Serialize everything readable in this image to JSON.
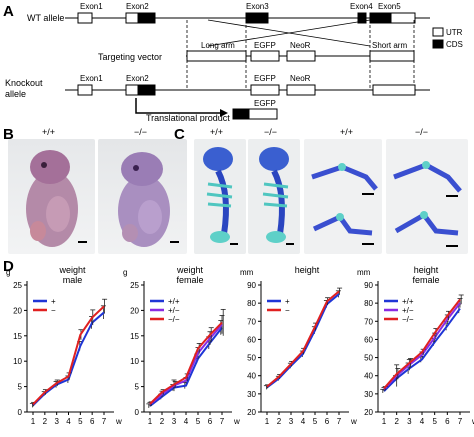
{
  "panels": {
    "a": "A",
    "b": "B",
    "c": "C",
    "d": "D"
  },
  "diagram": {
    "wt_allele": "WT allele",
    "targeting_vector": "Targeting vector",
    "knockout_allele_line1": "Knockout",
    "knockout_allele_line2": "allele",
    "exon1": "Exon1",
    "exon2": "Exon2",
    "exon3": "Exon3",
    "exon4": "Exon4",
    "exon5": "Exon5",
    "long_arm": "Long arm",
    "short_arm": "Short arm",
    "egfp": "EGFP",
    "neor": "NeoR",
    "translational_product": "Translational product",
    "legend_utr": "UTR",
    "legend_cds": "CDS"
  },
  "genotypes": {
    "b": [
      "+/+",
      "−/−"
    ],
    "c": [
      "+/+",
      "−/−",
      "+/+",
      "−/−"
    ]
  },
  "chart_data": [
    {
      "type": "line",
      "title": "weight",
      "subtitle": "male",
      "ylabel": "g",
      "xlabel": "w",
      "x": [
        1,
        2,
        3,
        4,
        5,
        6,
        7
      ],
      "ylim": [
        0,
        25
      ],
      "yticks": [
        0,
        5,
        10,
        15,
        20,
        25
      ],
      "legend_position": "top-left",
      "series": [
        {
          "name": "+",
          "color": "#1f35d6",
          "values": [
            1.3,
            3.6,
            5.4,
            6.4,
            13.0,
            17.6,
            19.6
          ],
          "err": [
            0.4,
            0.4,
            0.6,
            0.7,
            0.9,
            1.2,
            1.3
          ]
        },
        {
          "name": "−",
          "color": "#e02020",
          "values": [
            1.5,
            3.9,
            5.7,
            7.0,
            15.2,
            18.6,
            20.8
          ],
          "err": [
            0.4,
            0.5,
            0.6,
            0.7,
            1.0,
            1.5,
            1.4
          ]
        }
      ]
    },
    {
      "type": "line",
      "title": "weight",
      "subtitle": "female",
      "ylabel": "g",
      "xlabel": "w",
      "x": [
        1,
        2,
        3,
        4,
        5,
        6,
        7
      ],
      "ylim": [
        0,
        25
      ],
      "yticks": [
        0,
        5,
        10,
        15,
        20,
        25
      ],
      "legend_position": "top-left",
      "series": [
        {
          "name": "+/+",
          "color": "#1f35d6",
          "values": [
            1.2,
            3.0,
            4.8,
            5.2,
            10.5,
            13.6,
            16.6
          ],
          "err": [
            0.4,
            0.5,
            0.6,
            0.6,
            0.9,
            1.2,
            1.4
          ]
        },
        {
          "name": "+/−",
          "color": "#8a2be2",
          "values": [
            1.5,
            3.5,
            5.2,
            6.2,
            11.6,
            14.5,
            17.2
          ],
          "err": [
            0.4,
            0.6,
            1.1,
            0.6,
            1.1,
            1.3,
            1.8
          ]
        },
        {
          "name": "−/−",
          "color": "#e02020",
          "values": [
            1.6,
            3.9,
            5.4,
            6.8,
            12.5,
            15.2,
            17.6
          ],
          "err": [
            0.4,
            0.5,
            0.6,
            0.7,
            1.0,
            1.4,
            2.6
          ]
        }
      ]
    },
    {
      "type": "line",
      "title": "height",
      "subtitle": "",
      "ylabel": "mm",
      "xlabel": "w",
      "x": [
        1,
        2,
        3,
        4,
        5,
        6,
        7
      ],
      "ylim": [
        20,
        90
      ],
      "yticks": [
        20,
        30,
        40,
        50,
        60,
        70,
        80,
        90
      ],
      "legend_position": "top-left",
      "series": [
        {
          "name": "+",
          "color": "#1f35d6",
          "values": [
            33.5,
            38.5,
            45.5,
            52.0,
            65.0,
            79.5,
            85.0
          ],
          "err": [
            1.0,
            1.2,
            1.4,
            1.6,
            2.0,
            2.0,
            1.8
          ]
        },
        {
          "name": "−",
          "color": "#e02020",
          "values": [
            34.0,
            39.5,
            46.5,
            53.5,
            67.0,
            81.0,
            86.5
          ],
          "err": [
            1.0,
            1.2,
            1.4,
            1.6,
            2.0,
            2.0,
            1.8
          ]
        }
      ]
    },
    {
      "type": "line",
      "title": "height",
      "subtitle": "female",
      "ylabel": "mm",
      "xlabel": "w",
      "x": [
        1,
        2,
        3,
        4,
        5,
        6,
        7
      ],
      "ylim": [
        20,
        90
      ],
      "yticks": [
        20,
        30,
        40,
        50,
        60,
        70,
        80,
        90
      ],
      "legend_position": "top-left",
      "series": [
        {
          "name": "+/+",
          "color": "#1f35d6",
          "values": [
            31.5,
            38.5,
            44.0,
            49.0,
            58.5,
            67.5,
            77.0
          ],
          "err": [
            1.0,
            1.5,
            3.0,
            1.6,
            2.0,
            2.5,
            2.5
          ]
        },
        {
          "name": "+/−",
          "color": "#8a2be2",
          "values": [
            32.5,
            40.0,
            46.0,
            51.5,
            61.0,
            71.0,
            80.0
          ],
          "err": [
            1.0,
            6.0,
            3.0,
            1.6,
            2.5,
            2.5,
            2.5
          ]
        },
        {
          "name": "−/−",
          "color": "#e02020",
          "values": [
            33.0,
            41.0,
            47.0,
            53.0,
            63.5,
            73.0,
            82.0
          ],
          "err": [
            1.0,
            3.0,
            2.5,
            1.6,
            2.5,
            2.5,
            2.5
          ]
        }
      ]
    }
  ]
}
